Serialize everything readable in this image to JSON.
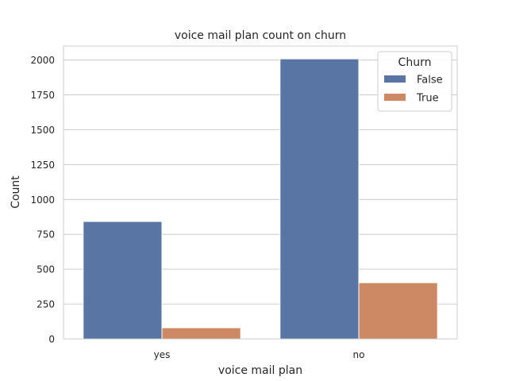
{
  "chart_data": {
    "type": "bar",
    "title": "voice mail plan count on churn",
    "xlabel": "voice mail plan",
    "ylabel": "Count",
    "categories": [
      "yes",
      "no"
    ],
    "series": [
      {
        "name": "False",
        "values": [
          842,
          2008
        ],
        "color": "#5875a4"
      },
      {
        "name": "True",
        "values": [
          80,
          403
        ],
        "color": "#cc8963"
      }
    ],
    "ylim": [
      0,
      2100
    ],
    "yticks": [
      0,
      250,
      500,
      750,
      1000,
      1250,
      1500,
      1750,
      2000
    ],
    "grid": true,
    "legend": {
      "title": "Churn",
      "placement": "top-right"
    }
  }
}
